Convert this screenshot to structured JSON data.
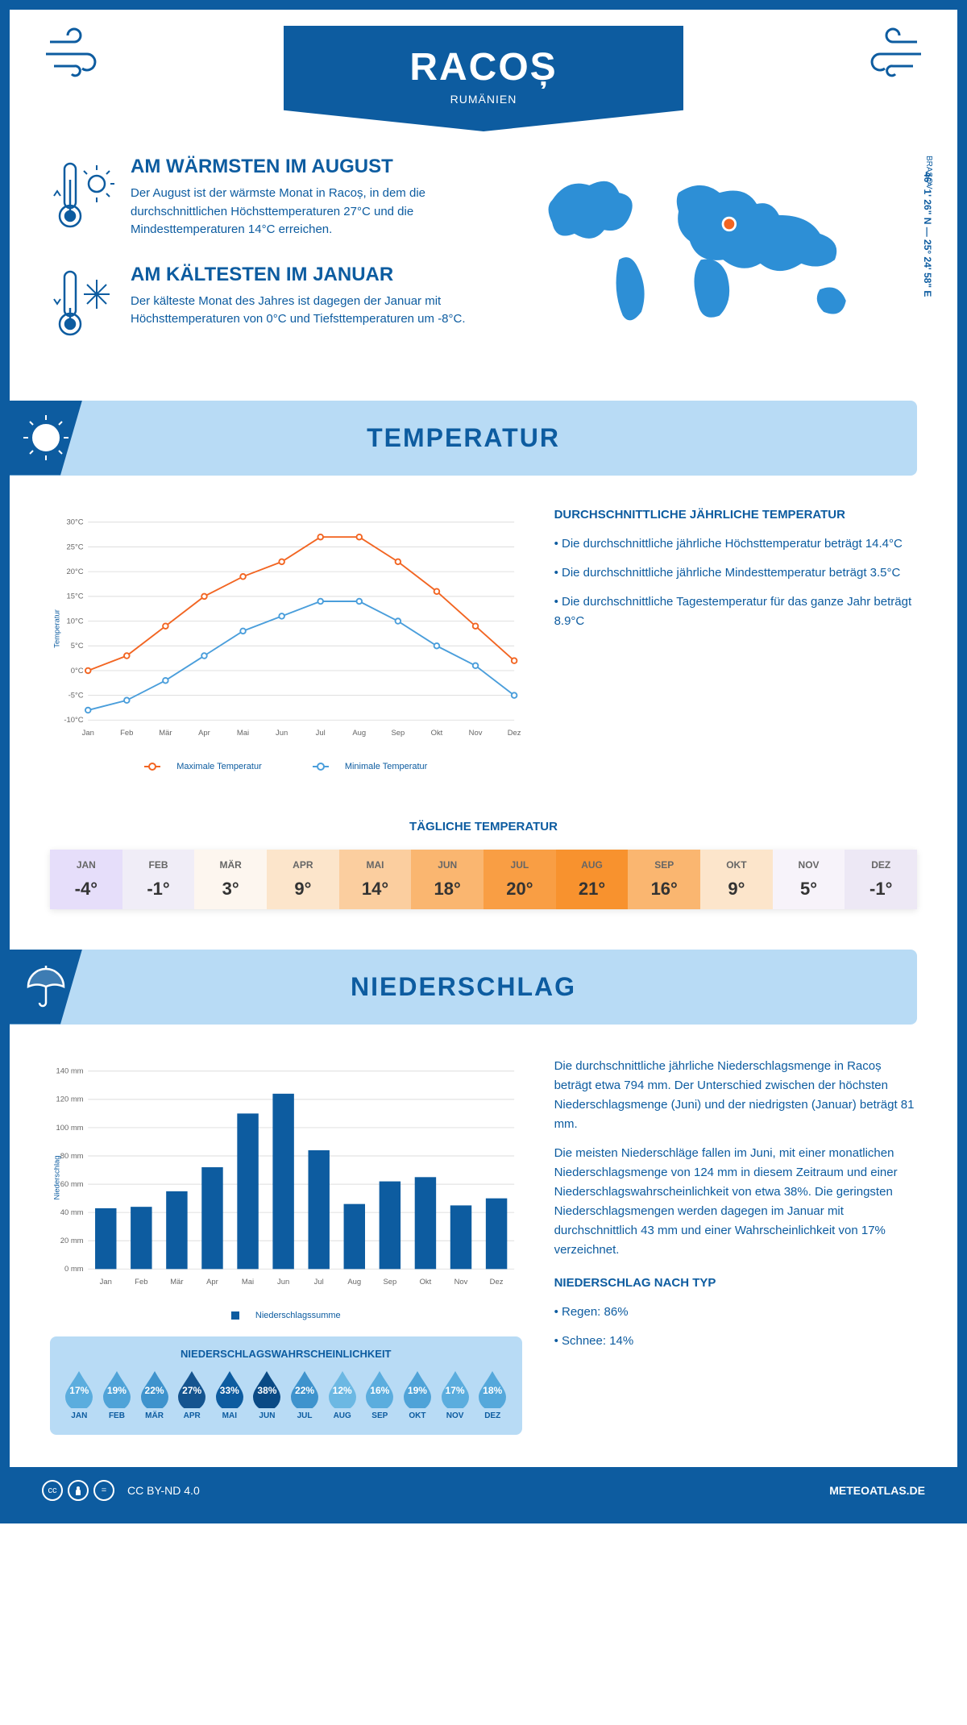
{
  "header": {
    "title": "RACOȘ",
    "subtitle": "RUMÄNIEN"
  },
  "colors": {
    "primary": "#0d5ca0",
    "light": "#b8dbf5",
    "orange": "#f26522",
    "blue_line": "#4a9edb"
  },
  "facts": {
    "warm": {
      "title": "AM WÄRMSTEN IM AUGUST",
      "text": "Der August ist der wärmste Monat in Racoș, in dem die durchschnittlichen Höchsttemperaturen 27°C und die Mindesttemperaturen 14°C erreichen."
    },
    "cold": {
      "title": "AM KÄLTESTEN IM JANUAR",
      "text": "Der kälteste Monat des Jahres ist dagegen der Januar mit Höchsttemperaturen von 0°C und Tiefsttemperaturen um -8°C."
    }
  },
  "coords": "46° 1' 26\" N — 25° 24' 58\" E",
  "region": "BRAȘOV",
  "sections": {
    "temp": "TEMPERATUR",
    "precip": "NIEDERSCHLAG"
  },
  "months": [
    "Jan",
    "Feb",
    "Mär",
    "Apr",
    "Mai",
    "Jun",
    "Jul",
    "Aug",
    "Sep",
    "Okt",
    "Nov",
    "Dez"
  ],
  "months_uc": [
    "JAN",
    "FEB",
    "MÄR",
    "APR",
    "MAI",
    "JUN",
    "JUL",
    "AUG",
    "SEP",
    "OKT",
    "NOV",
    "DEZ"
  ],
  "temp_chart": {
    "max": [
      0,
      3,
      9,
      15,
      19,
      22,
      27,
      27,
      22,
      16,
      9,
      2
    ],
    "min": [
      -8,
      -6,
      -2,
      3,
      8,
      11,
      14,
      14,
      10,
      5,
      1,
      -5
    ],
    "ylim": [
      -10,
      30
    ],
    "ytick_step": 5,
    "max_color": "#f26522",
    "min_color": "#4a9edb",
    "legend_max": "Maximale Temperatur",
    "legend_min": "Minimale Temperatur",
    "ylabel": "Temperatur"
  },
  "temp_text": {
    "heading": "DURCHSCHNITTLICHE JÄHRLICHE TEMPERATUR",
    "lines": [
      "• Die durchschnittliche jährliche Höchsttemperatur beträgt 14.4°C",
      "• Die durchschnittliche jährliche Mindesttemperatur beträgt 3.5°C",
      "• Die durchschnittliche Tagestemperatur für das ganze Jahr beträgt 8.9°C"
    ]
  },
  "daily_temp": {
    "title": "TÄGLICHE TEMPERATUR",
    "values": [
      "-4°",
      "-1°",
      "3°",
      "9°",
      "14°",
      "18°",
      "20°",
      "21°",
      "16°",
      "9°",
      "5°",
      "-1°"
    ],
    "bg": [
      "#e6defa",
      "#f0edf7",
      "#fdf6ef",
      "#fce5cb",
      "#fbce9f",
      "#fab670",
      "#f99e44",
      "#f8922e",
      "#fab670",
      "#fce5cb",
      "#f7f3fa",
      "#ede8f5"
    ]
  },
  "precip_chart": {
    "values": [
      43,
      44,
      55,
      72,
      110,
      124,
      84,
      46,
      62,
      65,
      45,
      50
    ],
    "ylim": [
      0,
      140
    ],
    "ytick_step": 20,
    "bar_color": "#0d5ca0",
    "legend": "Niederschlagssumme",
    "ylabel": "Niederschlag"
  },
  "precip_text": {
    "p1": "Die durchschnittliche jährliche Niederschlagsmenge in Racoș beträgt etwa 794 mm. Der Unterschied zwischen der höchsten Niederschlagsmenge (Juni) und der niedrigsten (Januar) beträgt 81 mm.",
    "p2": "Die meisten Niederschläge fallen im Juni, mit einer monatlichen Niederschlagsmenge von 124 mm in diesem Zeitraum und einer Niederschlagswahrscheinlichkeit von etwa 38%. Die geringsten Niederschlagsmengen werden dagegen im Januar mit durchschnittlich 43 mm und einer Wahrscheinlichkeit von 17% verzeichnet.",
    "type_heading": "NIEDERSCHLAG NACH TYP",
    "type_lines": [
      "• Regen: 86%",
      "• Schnee: 14%"
    ]
  },
  "probability": {
    "title": "NIEDERSCHLAGSWAHRSCHEINLICHKEIT",
    "values": [
      "17%",
      "19%",
      "22%",
      "27%",
      "33%",
      "38%",
      "22%",
      "12%",
      "16%",
      "19%",
      "17%",
      "18%"
    ],
    "colors": [
      "#5badde",
      "#4fa3d8",
      "#3e93cd",
      "#15548f",
      "#0d5ca0",
      "#0a4a85",
      "#3e93cd",
      "#6cb8e3",
      "#5badde",
      "#4fa3d8",
      "#5badde",
      "#55a8db"
    ]
  },
  "footer": {
    "license": "CC BY-ND 4.0",
    "site": "METEOATLAS.DE"
  }
}
